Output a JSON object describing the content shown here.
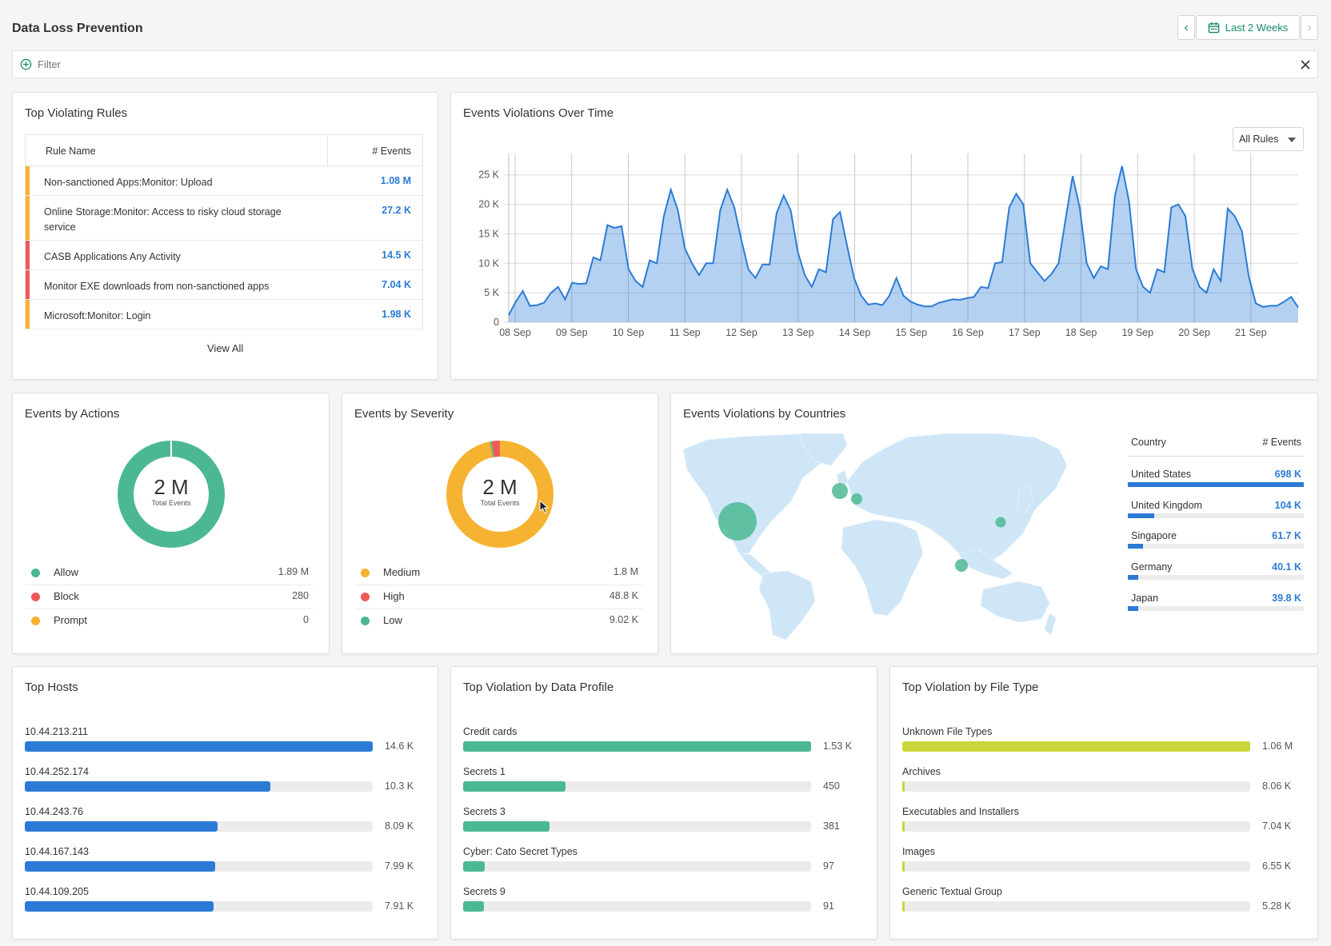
{
  "header": {
    "title": "Data Loss Prevention",
    "date_range": "Last 2 Weeks",
    "filter_placeholder": "Filter"
  },
  "top_rules": {
    "title": "Top Violating Rules",
    "col_name": "Rule Name",
    "col_events": "# Events",
    "rows": [
      {
        "name": "Non-sanctioned Apps:Monitor: Upload",
        "value": "1.08 M",
        "color": "#f5b331"
      },
      {
        "name": "Online Storage:Monitor: Access to risky cloud storage service",
        "value": "27.2 K",
        "color": "#f5b331"
      },
      {
        "name": "CASB Applications Any Activity",
        "value": "14.5 K",
        "color": "#ee5a5a"
      },
      {
        "name": "Monitor EXE downloads from non-sanctioned apps",
        "value": "7.04 K",
        "color": "#ee5a5a"
      },
      {
        "name": "Microsoft:Monitor: Login",
        "value": "1.98 K",
        "color": "#f5b331"
      }
    ],
    "view_all": "View All"
  },
  "chart_data": {
    "type": "area",
    "title": "Events Violations Over Time",
    "dropdown": "All Rules",
    "y_ticks": [
      "0",
      "5 K",
      "10 K",
      "15 K",
      "20 K",
      "25 K"
    ],
    "ylim": [
      0,
      27000
    ],
    "x_tick_labels": [
      "08 Sep",
      "09 Sep",
      "10 Sep",
      "11 Sep",
      "12 Sep",
      "13 Sep",
      "14 Sep",
      "15 Sep",
      "16 Sep",
      "17 Sep",
      "18 Sep",
      "19 Sep",
      "20 Sep",
      "21 Sep"
    ],
    "grid": true,
    "series": [
      {
        "color": "#2b7bd6",
        "values": [
          1200,
          3500,
          5300,
          2800,
          2900,
          3300,
          5000,
          6000,
          3900,
          6700,
          6500,
          6600,
          11000,
          10500,
          16500,
          16000,
          16300,
          9000,
          7000,
          6000,
          10500,
          10000,
          18000,
          22500,
          19000,
          12500,
          10000,
          8000,
          10000,
          10000,
          19000,
          22500,
          19500,
          14000,
          9000,
          7500,
          9800,
          9800,
          18500,
          21500,
          19000,
          12000,
          8000,
          6000,
          9000,
          8500,
          17500,
          18700,
          13000,
          7500,
          4500,
          3000,
          3200,
          2900,
          4500,
          7500,
          4500,
          3500,
          3000,
          2700,
          2700,
          3300,
          3600,
          3900,
          3800,
          4100,
          4300,
          6000,
          5800,
          10000,
          10200,
          19500,
          21800,
          20000,
          10000,
          8500,
          7000,
          8200,
          10000,
          17500,
          24800,
          19500,
          10000,
          7500,
          9500,
          9000,
          21500,
          26500,
          20500,
          9000,
          6000,
          5000,
          9000,
          8500,
          19500,
          20000,
          18000,
          9000,
          6000,
          5000,
          9000,
          7000,
          19300,
          18000,
          15500,
          7700,
          3200,
          2600,
          2800,
          2800,
          3500,
          4300,
          2500
        ]
      }
    ]
  },
  "actions": {
    "title": "Events by Actions",
    "total": "2 M",
    "total_label": "Total Events",
    "items": [
      {
        "label": "Allow",
        "value": "1.89 M",
        "color": "#4cb893"
      },
      {
        "label": "Block",
        "value": "280",
        "color": "#ee5a5a"
      },
      {
        "label": "Prompt",
        "value": "0",
        "color": "#f5b331"
      }
    ]
  },
  "severity": {
    "title": "Events by Severity",
    "total": "2 M",
    "total_label": "Total Events",
    "items": [
      {
        "label": "Medium",
        "value": "1.8 M",
        "color": "#f5b331"
      },
      {
        "label": "High",
        "value": "48.8 K",
        "color": "#ee5a5a"
      },
      {
        "label": "Low",
        "value": "9.02 K",
        "color": "#4cb893"
      }
    ]
  },
  "countries": {
    "title": "Events Violations by Countries",
    "col_country": "Country",
    "col_events": "# Events",
    "rows": [
      {
        "name": "United States",
        "value": "698 K",
        "fraction": 1.0
      },
      {
        "name": "United Kingdom",
        "value": "104 K",
        "fraction": 0.149
      },
      {
        "name": "Singapore",
        "value": "61.7 K",
        "fraction": 0.088
      },
      {
        "name": "Germany",
        "value": "40.1 K",
        "fraction": 0.057
      },
      {
        "name": "Japan",
        "value": "39.8 K",
        "fraction": 0.057
      }
    ]
  },
  "top_hosts": {
    "title": "Top Hosts",
    "color": "#2b7bd6",
    "rows": [
      {
        "label": "10.44.213.211",
        "value": "14.6 K",
        "fraction": 1.0
      },
      {
        "label": "10.44.252.174",
        "value": "10.3 K",
        "fraction": 0.705
      },
      {
        "label": "10.44.243.76",
        "value": "8.09 K",
        "fraction": 0.554
      },
      {
        "label": "10.44.167.143",
        "value": "7.99 K",
        "fraction": 0.547
      },
      {
        "label": "10.44.109.205",
        "value": "7.91 K",
        "fraction": 0.542
      }
    ]
  },
  "data_profile": {
    "title": "Top Violation by Data Profile",
    "color": "#4cb893",
    "rows": [
      {
        "label": "Credit cards",
        "value": "1.53 K",
        "fraction": 1.0
      },
      {
        "label": "Secrets 1",
        "value": "450",
        "fraction": 0.294
      },
      {
        "label": "Secrets 3",
        "value": "381",
        "fraction": 0.249
      },
      {
        "label": "Cyber: Cato Secret Types",
        "value": "97",
        "fraction": 0.063
      },
      {
        "label": "Secrets 9",
        "value": "91",
        "fraction": 0.059
      }
    ]
  },
  "file_type": {
    "title": "Top Violation by File Type",
    "color": "#c8d63a",
    "rows": [
      {
        "label": "Unknown File Types",
        "value": "1.06 M",
        "fraction": 1.0
      },
      {
        "label": "Archives",
        "value": "8.06 K",
        "fraction": 0.0076
      },
      {
        "label": "Executables and Installers",
        "value": "7.04 K",
        "fraction": 0.0066
      },
      {
        "label": "Images",
        "value": "6.55 K",
        "fraction": 0.0062
      },
      {
        "label": "Generic Textual Group",
        "value": "5.28 K",
        "fraction": 0.005
      }
    ]
  }
}
